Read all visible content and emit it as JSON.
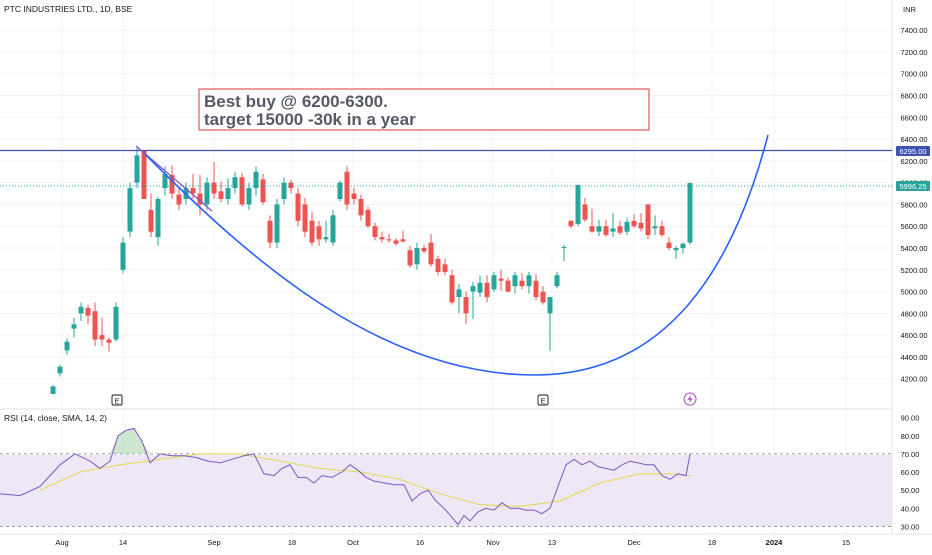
{
  "window": {
    "symbol_title": "PTC INDUSTRIES LTD., 1D, BSE",
    "currency": "INR"
  },
  "annotation": {
    "line1": "Best buy @ 6200-6300.",
    "line2": "target 15000 -30k in a year"
  },
  "price_badges": {
    "resistance": "6295.00",
    "last": "5996.25"
  },
  "event_markers": {
    "earnings_label": "E"
  },
  "rsi": {
    "title": "RSI (14, close, SMA, 14, 2)"
  },
  "colors": {
    "up": "#26a69a",
    "down": "#ef5350",
    "resistance": "#3f51b5",
    "cup_curve": "#2962ff",
    "rsi_line": "#7e57c2",
    "rsi_sma": "#e6d84e",
    "rsi_band": "#ede7f6",
    "annotation_border": "#e05a5a",
    "last_price": "#26a69a",
    "grid": "#f0f3f6"
  },
  "chart_data": {
    "type": "candlestick",
    "price_axis_ticks": [
      "4200.00",
      "4400.00",
      "4600.00",
      "4800.00",
      "5000.00",
      "5200.00",
      "5400.00",
      "5600.00",
      "5800.00",
      "6000.00",
      "6200.00",
      "6400.00",
      "6600.00",
      "6800.00",
      "7000.00",
      "7200.00",
      "7400.00"
    ],
    "price_range": [
      4060,
      7640
    ],
    "resistance_level": 6295,
    "last_price": 5996.25,
    "rsi_axis_ticks": [
      "30.00",
      "40.00",
      "50.00",
      "60.00",
      "70.00",
      "80.00",
      "90.00"
    ],
    "rsi_range": [
      28,
      92
    ],
    "rsi_levels": [
      30,
      50,
      70
    ],
    "time_labels": [
      "Aug",
      "14",
      "Sep",
      "18",
      "Oct",
      "16",
      "Nov",
      "13",
      "Dec",
      "18",
      "2024",
      "15"
    ]
  }
}
